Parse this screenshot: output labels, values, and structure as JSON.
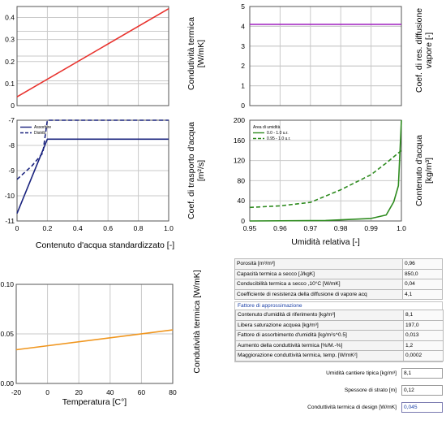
{
  "charts": [
    {
      "id": "tc",
      "type": "line",
      "ylim": [
        0,
        0.45
      ],
      "yticks": [
        "0",
        "0.1",
        "0.2",
        "0.3",
        "0.4"
      ],
      "ytick_values": [
        0,
        0.1,
        0.2,
        0.3,
        0.4
      ],
      "xlim": [
        0,
        1
      ],
      "ylabel_lines": [
        "Condutività termica",
        "[W/mK]"
      ],
      "series": [
        {
          "color": "#e8322d",
          "x": [
            0,
            1
          ],
          "y": [
            0.04,
            0.44
          ]
        }
      ]
    },
    {
      "id": "vd",
      "type": "line",
      "ylim": [
        0,
        5
      ],
      "yticks": [
        "0",
        "1",
        "2",
        "3",
        "4",
        "5"
      ],
      "ytick_values": [
        0,
        1,
        2,
        3,
        4,
        5
      ],
      "xlim": [
        0,
        1
      ],
      "ylabel_lines": [
        "Coef. di res. diffusione",
        "vapore [-]"
      ],
      "series": [
        {
          "color": "#a020c0",
          "x": [
            0,
            1
          ],
          "y": [
            4.1,
            4.1
          ]
        }
      ]
    },
    {
      "id": "wt",
      "type": "line",
      "ylim": [
        -11,
        -7
      ],
      "yticks": [
        "-11",
        "-10",
        "-9",
        "-8",
        "-7"
      ],
      "ytick_values": [
        -11,
        -10,
        -9,
        -8,
        -7
      ],
      "xlim": [
        0,
        1
      ],
      "xticks": [
        "0",
        "0.2",
        "0.4",
        "0.6",
        "0.8",
        "1.0"
      ],
      "xtick_values": [
        0,
        0.2,
        0.4,
        0.6,
        0.8,
        1.0
      ],
      "xlabel": "Contenuto d'acqua standardizzato [-]",
      "ylabel_lines": [
        "Coef. di trasporto d'acqua",
        "[m²/s]"
      ],
      "legend": [
        "Assorbire",
        "Distrib."
      ],
      "series": [
        {
          "name": "Assorbire",
          "color": "#1a237e",
          "dash": false,
          "x": [
            0,
            0.2,
            1
          ],
          "y": [
            -10.7,
            -7.75,
            -7.75
          ]
        },
        {
          "name": "Distrib.",
          "color": "#1a237e",
          "dash": true,
          "x": [
            0,
            0.1,
            0.17,
            0.2,
            1
          ],
          "y": [
            -9.35,
            -8.8,
            -8.3,
            -7.0,
            -7.0
          ]
        }
      ]
    },
    {
      "id": "ms",
      "type": "line",
      "ylim": [
        0,
        200
      ],
      "yticks": [
        "0",
        "40",
        "80",
        "120",
        "160",
        "200"
      ],
      "ytick_values": [
        0,
        40,
        80,
        120,
        160,
        200
      ],
      "xlim": [
        0,
        1
      ],
      "xticks": [
        "0.95",
        "0.96",
        "0.97",
        "0.98",
        "0.99",
        "1.0"
      ],
      "xtick_values": [
        0,
        0.2,
        0.4,
        0.6,
        0.8,
        1.0
      ],
      "xlabel": "Umidità relativa [-]",
      "ylabel_lines": [
        "Contenuto d'acqua",
        "[kg/m³]"
      ],
      "legend_title": "Area di umidità",
      "legend": [
        "0.0 - 1.0 u.r.",
        "0.95 - 1.0 u.r."
      ],
      "series": [
        {
          "name": "0.0 - 1.0 u.r.",
          "color": "#2e8b1f",
          "dash": false,
          "x": [
            0,
            0.5,
            0.8,
            0.9,
            0.95,
            0.98,
            1.0
          ],
          "y": [
            0,
            1,
            5,
            12,
            38,
            70,
            200
          ]
        },
        {
          "name": "0.95 - 1.0 u.r.",
          "color": "#2e8b1f",
          "dash": true,
          "x": [
            0,
            0.2,
            0.4,
            0.6,
            0.8,
            0.9,
            1.0
          ],
          "y": [
            27,
            30,
            37,
            62,
            92,
            115,
            140
          ]
        }
      ]
    },
    {
      "id": "tt",
      "type": "line",
      "ylim": [
        0,
        0.1
      ],
      "yticks": [
        "0.00",
        "0.05",
        "0.10"
      ],
      "ytick_values": [
        0,
        0.05,
        0.1
      ],
      "xlim": [
        -20,
        80
      ],
      "xticks": [
        "-20",
        "0",
        "20",
        "40",
        "60",
        "80"
      ],
      "xtick_values": [
        -20,
        0,
        20,
        40,
        60,
        80
      ],
      "xlabel": "Temperatura [C°]",
      "ylabel_lines": [
        "Condutività termica [W/mK]"
      ],
      "series": [
        {
          "color": "#f0961e",
          "x": [
            -20,
            80
          ],
          "y": [
            0.034,
            0.054
          ]
        }
      ]
    }
  ],
  "properties": {
    "base": [
      {
        "label": "Porosità [m³/m³]",
        "value": "0,96"
      },
      {
        "label": "Capacità termica a secco [J/kgK]",
        "value": "850,0"
      },
      {
        "label": "Conducibilità termica a secco ,10°C [W/mK]",
        "value": "0,04"
      },
      {
        "label": "Coefficiente di resistenza della diffusione di vapore acq",
        "value": "4,1"
      }
    ],
    "approx_title": "Fattore di approssimazione",
    "approx": [
      {
        "label": "Contenuto d'umidità di riferimento [kg/m³]",
        "value": "8,1"
      },
      {
        "label": "Libera saturazione acquea [kg/m³]",
        "value": "197,0"
      },
      {
        "label": "Fattore di assorbimento d'umidità [kg/m²s^0.5]",
        "value": "0,013"
      },
      {
        "label": "Aumento della conduttività termica [%/M.-%]",
        "value": "1,2"
      },
      {
        "label": "Maggiorazione conduttività termica, temp. [W/mK²]",
        "value": "0,0002"
      }
    ],
    "inputs": [
      {
        "label": "Umidità cantiere tipica [kg/m³]",
        "value": "8,1"
      },
      {
        "label": "Spessore di strato [m]",
        "value": "0,12"
      },
      {
        "label": "Conduttività termica di design [W/mK]",
        "value": "0,045"
      }
    ]
  }
}
